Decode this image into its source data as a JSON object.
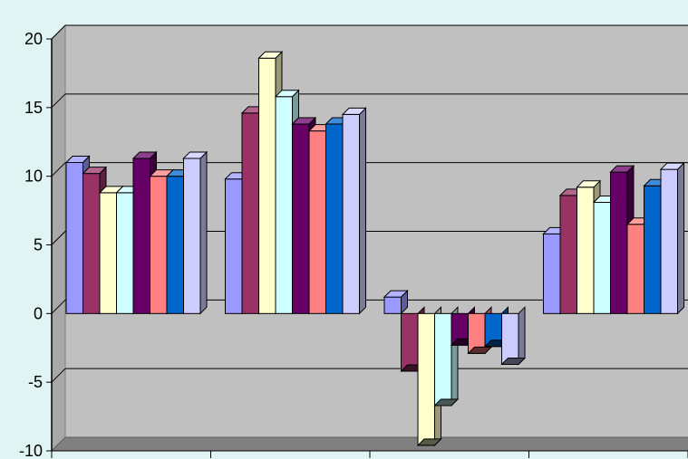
{
  "chart_data": {
    "type": "bar",
    "style": "3d-clustered-column",
    "categories": [
      "",
      "",
      "",
      ""
    ],
    "ylim": [
      -10,
      20
    ],
    "yticks": [
      "20",
      "15",
      "10",
      "5",
      "0",
      "-5",
      "-10"
    ],
    "grid": true,
    "legend": "none",
    "series": [
      {
        "color": "#9999ff",
        "values": [
          11.0,
          9.8,
          1.2,
          5.8
        ]
      },
      {
        "color": "#993366",
        "values": [
          10.2,
          14.6,
          -4.2,
          8.6
        ]
      },
      {
        "color": "#ffffcc",
        "values": [
          8.8,
          18.6,
          -9.6,
          9.2
        ]
      },
      {
        "color": "#ccffff",
        "values": [
          8.8,
          15.8,
          -6.7,
          8.1
        ]
      },
      {
        "color": "#660066",
        "values": [
          11.3,
          13.8,
          -2.3,
          10.3
        ]
      },
      {
        "color": "#ff8080",
        "values": [
          10.0,
          13.3,
          -2.9,
          6.5
        ]
      },
      {
        "color": "#0066cc",
        "values": [
          10.0,
          13.8,
          -2.4,
          9.3
        ]
      },
      {
        "color": "#ccccff",
        "values": [
          11.3,
          14.5,
          -3.7,
          10.5
        ]
      }
    ]
  },
  "colors": {
    "background": "#e0f5f3",
    "plot_area": "#c0c0c0",
    "floor": "#808080",
    "gridline": "#000000"
  }
}
